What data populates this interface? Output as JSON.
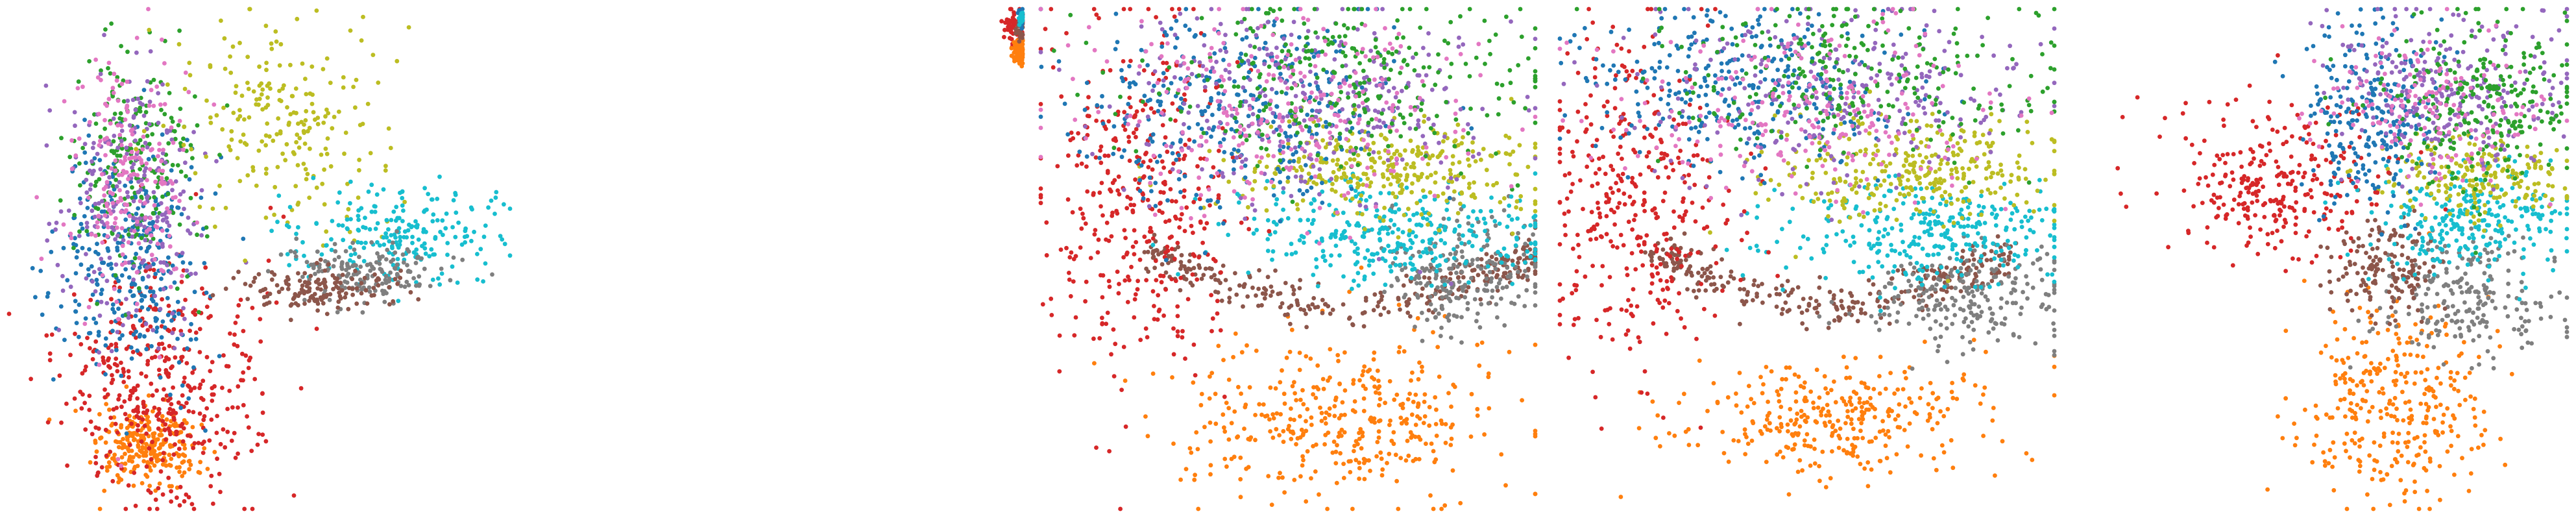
{
  "colors": {
    "blue": "#1f77b4",
    "orange": "#ff7f0e",
    "green": "#2ca02c",
    "red": "#d62728",
    "purple": "#9467bd",
    "brown": "#8c564b",
    "pink": "#e377c2",
    "gray": "#7f7f7f",
    "olive": "#bcbd22",
    "cyan": "#17becf"
  },
  "chart_data": [
    {
      "type": "scatter",
      "panel": 1,
      "axes": "hidden",
      "grid": false,
      "legend": "none",
      "clusters": [
        {
          "color": "orange",
          "count": 260,
          "center": [
            0.28,
            0.12
          ],
          "spread": [
            0.05,
            0.04
          ],
          "shape": "tight"
        },
        {
          "color": "red",
          "count": 420,
          "center": [
            0.3,
            0.25
          ],
          "spread": [
            0.1,
            0.12
          ],
          "shape": "gauss"
        },
        {
          "color": "blue",
          "count": 320,
          "center": [
            0.25,
            0.5
          ],
          "spread": [
            0.07,
            0.12
          ],
          "shape": "gauss"
        },
        {
          "color": "green",
          "count": 220,
          "center": [
            0.25,
            0.7
          ],
          "spread": [
            0.06,
            0.12
          ],
          "shape": "gauss"
        },
        {
          "color": "purple",
          "count": 240,
          "center": [
            0.24,
            0.62
          ],
          "spread": [
            0.07,
            0.14
          ],
          "shape": "gauss"
        },
        {
          "color": "pink",
          "count": 200,
          "center": [
            0.24,
            0.66
          ],
          "spread": [
            0.06,
            0.14
          ],
          "shape": "gauss"
        },
        {
          "color": "olive",
          "count": 220,
          "center": [
            0.55,
            0.78
          ],
          "spread": [
            0.1,
            0.1
          ],
          "shape": "gauss"
        },
        {
          "color": "cyan",
          "count": 220,
          "center": [
            0.78,
            0.55
          ],
          "spread": [
            0.1,
            0.05
          ],
          "shape": "gauss"
        },
        {
          "color": "gray",
          "count": 160,
          "center": [
            0.72,
            0.47
          ],
          "spread": [
            0.08,
            0.03
          ],
          "shape": "gauss"
        },
        {
          "color": "brown",
          "count": 140,
          "center": [
            0.62,
            0.44
          ],
          "spread": [
            0.09,
            0.02
          ],
          "shape": "gauss"
        }
      ]
    },
    {
      "type": "scatter",
      "panel": 2,
      "axes": "hidden",
      "grid": false,
      "legend": "none",
      "clusters": [
        {
          "color": "red",
          "count": 60,
          "center": [
            0.94,
            0.9
          ],
          "spread": [
            0.05,
            0.05
          ],
          "shape": "gauss"
        },
        {
          "color": "orange",
          "count": 60,
          "center": [
            0.97,
            0.76
          ],
          "spread": [
            0.03,
            0.04
          ],
          "shape": "gauss"
        },
        {
          "color": "brown",
          "count": 25,
          "center": [
            0.98,
            0.88
          ],
          "spread": [
            0.02,
            0.03
          ],
          "shape": "gauss"
        },
        {
          "color": "blue",
          "count": 20,
          "center": [
            0.985,
            0.95
          ],
          "spread": [
            0.01,
            0.03
          ],
          "shape": "gauss"
        },
        {
          "color": "cyan",
          "count": 15,
          "center": [
            0.99,
            0.96
          ],
          "spread": [
            0.01,
            0.02
          ],
          "shape": "gauss"
        }
      ]
    },
    {
      "type": "scatter",
      "panel": 3,
      "axes": "hidden",
      "grid": false,
      "legend": "none",
      "clusters": [
        {
          "color": "orange",
          "count": 380,
          "center": [
            0.6,
            0.18
          ],
          "spread": [
            0.16,
            0.08
          ],
          "shape": "gauss"
        },
        {
          "color": "brown",
          "count": 320,
          "center": [
            0.62,
            0.42
          ],
          "spread": [
            0.2,
            0.06
          ],
          "shape": "arc"
        },
        {
          "color": "gray",
          "count": 220,
          "center": [
            0.85,
            0.48
          ],
          "spread": [
            0.08,
            0.06
          ],
          "shape": "gauss"
        },
        {
          "color": "cyan",
          "count": 320,
          "center": [
            0.72,
            0.55
          ],
          "spread": [
            0.16,
            0.05
          ],
          "shape": "gauss"
        },
        {
          "color": "olive",
          "count": 320,
          "center": [
            0.7,
            0.68
          ],
          "spread": [
            0.16,
            0.05
          ],
          "shape": "gauss"
        },
        {
          "color": "red",
          "count": 380,
          "center": [
            0.2,
            0.62
          ],
          "spread": [
            0.1,
            0.18
          ],
          "shape": "gauss"
        },
        {
          "color": "blue",
          "count": 340,
          "center": [
            0.38,
            0.8
          ],
          "spread": [
            0.16,
            0.1
          ],
          "shape": "gauss"
        },
        {
          "color": "purple",
          "count": 300,
          "center": [
            0.55,
            0.82
          ],
          "spread": [
            0.2,
            0.1
          ],
          "shape": "gauss"
        },
        {
          "color": "green",
          "count": 300,
          "center": [
            0.6,
            0.86
          ],
          "spread": [
            0.2,
            0.09
          ],
          "shape": "gauss"
        },
        {
          "color": "pink",
          "count": 260,
          "center": [
            0.5,
            0.8
          ],
          "spread": [
            0.2,
            0.1
          ],
          "shape": "gauss"
        }
      ]
    },
    {
      "type": "scatter",
      "panel": 4,
      "axes": "hidden",
      "grid": false,
      "legend": "none",
      "clusters": [
        {
          "color": "orange",
          "count": 320,
          "center": [
            0.55,
            0.18
          ],
          "spread": [
            0.16,
            0.06
          ],
          "shape": "gauss"
        },
        {
          "color": "brown",
          "count": 300,
          "center": [
            0.55,
            0.42
          ],
          "spread": [
            0.18,
            0.06
          ],
          "shape": "arc"
        },
        {
          "color": "gray",
          "count": 220,
          "center": [
            0.82,
            0.42
          ],
          "spread": [
            0.1,
            0.05
          ],
          "shape": "gauss"
        },
        {
          "color": "cyan",
          "count": 300,
          "center": [
            0.76,
            0.55
          ],
          "spread": [
            0.14,
            0.05
          ],
          "shape": "gauss"
        },
        {
          "color": "olive",
          "count": 300,
          "center": [
            0.7,
            0.68
          ],
          "spread": [
            0.14,
            0.05
          ],
          "shape": "gauss"
        },
        {
          "color": "red",
          "count": 360,
          "center": [
            0.15,
            0.62
          ],
          "spread": [
            0.1,
            0.16
          ],
          "shape": "gauss"
        },
        {
          "color": "blue",
          "count": 320,
          "center": [
            0.38,
            0.85
          ],
          "spread": [
            0.16,
            0.08
          ],
          "shape": "gauss"
        },
        {
          "color": "purple",
          "count": 260,
          "center": [
            0.55,
            0.83
          ],
          "spread": [
            0.2,
            0.09
          ],
          "shape": "gauss"
        },
        {
          "color": "green",
          "count": 260,
          "center": [
            0.6,
            0.86
          ],
          "spread": [
            0.2,
            0.08
          ],
          "shape": "gauss"
        },
        {
          "color": "pink",
          "count": 220,
          "center": [
            0.5,
            0.8
          ],
          "spread": [
            0.2,
            0.09
          ],
          "shape": "gauss"
        }
      ]
    },
    {
      "type": "scatter",
      "panel": 5,
      "axes": "hidden",
      "grid": false,
      "legend": "none",
      "clusters": [
        {
          "color": "orange",
          "count": 320,
          "center": [
            0.62,
            0.22
          ],
          "spread": [
            0.1,
            0.1
          ],
          "shape": "gauss"
        },
        {
          "color": "gray",
          "count": 220,
          "center": [
            0.78,
            0.42
          ],
          "spread": [
            0.1,
            0.06
          ],
          "shape": "gauss"
        },
        {
          "color": "brown",
          "count": 160,
          "center": [
            0.62,
            0.48
          ],
          "spread": [
            0.06,
            0.05
          ],
          "shape": "gauss"
        },
        {
          "color": "cyan",
          "count": 260,
          "center": [
            0.8,
            0.58
          ],
          "spread": [
            0.1,
            0.05
          ],
          "shape": "gauss"
        },
        {
          "color": "olive",
          "count": 200,
          "center": [
            0.8,
            0.66
          ],
          "spread": [
            0.1,
            0.04
          ],
          "shape": "gauss"
        },
        {
          "color": "red",
          "count": 280,
          "center": [
            0.38,
            0.66
          ],
          "spread": [
            0.12,
            0.08
          ],
          "shape": "gauss"
        },
        {
          "color": "blue",
          "count": 260,
          "center": [
            0.58,
            0.8
          ],
          "spread": [
            0.07,
            0.1
          ],
          "shape": "gauss"
        },
        {
          "color": "purple",
          "count": 260,
          "center": [
            0.76,
            0.84
          ],
          "spread": [
            0.12,
            0.08
          ],
          "shape": "gauss"
        },
        {
          "color": "green",
          "count": 260,
          "center": [
            0.82,
            0.82
          ],
          "spread": [
            0.12,
            0.08
          ],
          "shape": "gauss"
        },
        {
          "color": "pink",
          "count": 160,
          "center": [
            0.7,
            0.8
          ],
          "spread": [
            0.12,
            0.08
          ],
          "shape": "gauss"
        }
      ]
    }
  ]
}
